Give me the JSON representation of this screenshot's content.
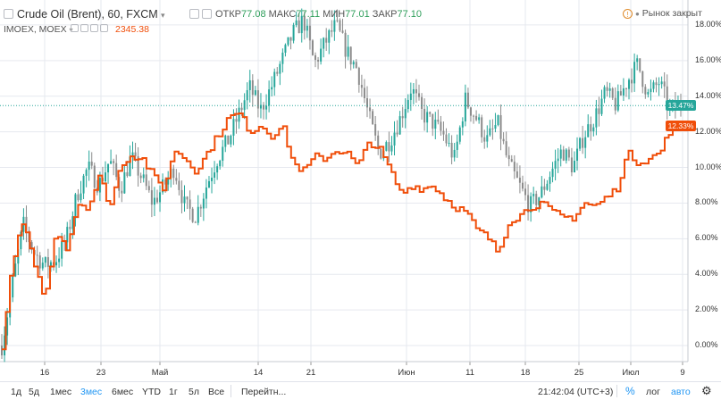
{
  "header": {
    "symbol": "Crude Oil (Brent), 60, FXCM",
    "open_label": "ОТКР",
    "open": "77.08",
    "high_label": "МАКС",
    "high": "77.11",
    "low_label": "МИН",
    "low": "77.01",
    "close_label": "ЗАКР",
    "close": "77.10",
    "compare_symbol": "IMOEX, MOEX",
    "compare_value": "2345.38",
    "market_status": "Рынок закрыт"
  },
  "chart_data": {
    "type": "line",
    "title": "Crude Oil (Brent), 60, FXCM",
    "xlabel": "",
    "ylabel": "",
    "x_ticks": [
      "16",
      "23",
      "Май",
      "14",
      "21",
      "Июн",
      "11",
      "18",
      "25",
      "Июл",
      "9"
    ],
    "y_ticks": [
      "0.00%",
      "2.00%",
      "4.00%",
      "6.00%",
      "8.00%",
      "10.00%",
      "12.00%",
      "14.00%",
      "16.00%",
      "18.00%"
    ],
    "ylim": [
      -0.9,
      19.4
    ],
    "grid": true,
    "legend": "top-left",
    "series": [
      {
        "name": "Crude Oil (Brent), 60, FXCM",
        "style": "candlestick",
        "color_up": "#26a69a",
        "color_down": "#8b8b8b",
        "last_label": "13.47%",
        "last_value": 13.47,
        "values": [
          0.0,
          3.5,
          6.8,
          5.2,
          4.5,
          4.8,
          6.0,
          8.5,
          10.0,
          9.0,
          10.4,
          8.8,
          10.6,
          9.4,
          8.0,
          8.9,
          10.0,
          7.8,
          7.3,
          9.0,
          10.5,
          11.5,
          13.0,
          14.5,
          13.2,
          14.5,
          16.0,
          17.5,
          18.3,
          15.8,
          17.0,
          18.0,
          16.5,
          15.5,
          13.0,
          10.8,
          11.5,
          12.8,
          14.5,
          13.0,
          12.5,
          11.8,
          10.5,
          13.8,
          12.8,
          11.5,
          12.5,
          10.2,
          9.0,
          7.8,
          8.5,
          9.8,
          11.0,
          10.0,
          11.8,
          12.8,
          14.2,
          13.5,
          14.8,
          15.8,
          14.0,
          14.8,
          13.2,
          13.47
        ]
      },
      {
        "name": "IMOEX, MOEX",
        "style": "line",
        "color": "#f04e0a",
        "last_label": "12.33%",
        "last_value": 12.33,
        "values": [
          0.0,
          5.0,
          7.0,
          4.2,
          2.7,
          6.5,
          5.5,
          8.0,
          7.8,
          9.5,
          7.8,
          10.2,
          10.7,
          10.5,
          9.5,
          8.8,
          11.0,
          10.5,
          9.8,
          10.8,
          11.8,
          12.8,
          13.0,
          12.0,
          12.4,
          11.8,
          12.3,
          10.2,
          9.8,
          10.6,
          10.5,
          11.0,
          10.8,
          10.0,
          11.5,
          11.0,
          9.8,
          8.5,
          9.0,
          8.8,
          9.0,
          8.3,
          7.8,
          7.5,
          6.5,
          6.1,
          5.2,
          7.0,
          7.3,
          7.8,
          8.0,
          7.5,
          7.2,
          7.2,
          8.0,
          7.8,
          8.3,
          8.8,
          10.8,
          10.3,
          10.5,
          10.8,
          12.2,
          12.33
        ]
      }
    ]
  },
  "bottom": {
    "periods": [
      "1д",
      "5д",
      "1мес",
      "3мес",
      "6мес",
      "YTD",
      "1г",
      "5л",
      "Все"
    ],
    "active_period": "3мес",
    "goto": "Перейтн...",
    "time": "21:42:04 (UTC+3)",
    "percent": "%",
    "log": "лог",
    "auto": "авто"
  },
  "colors": {
    "axis_text": "#333333",
    "grid": "#e6e9ef",
    "last_price_line": "#26a69a"
  }
}
